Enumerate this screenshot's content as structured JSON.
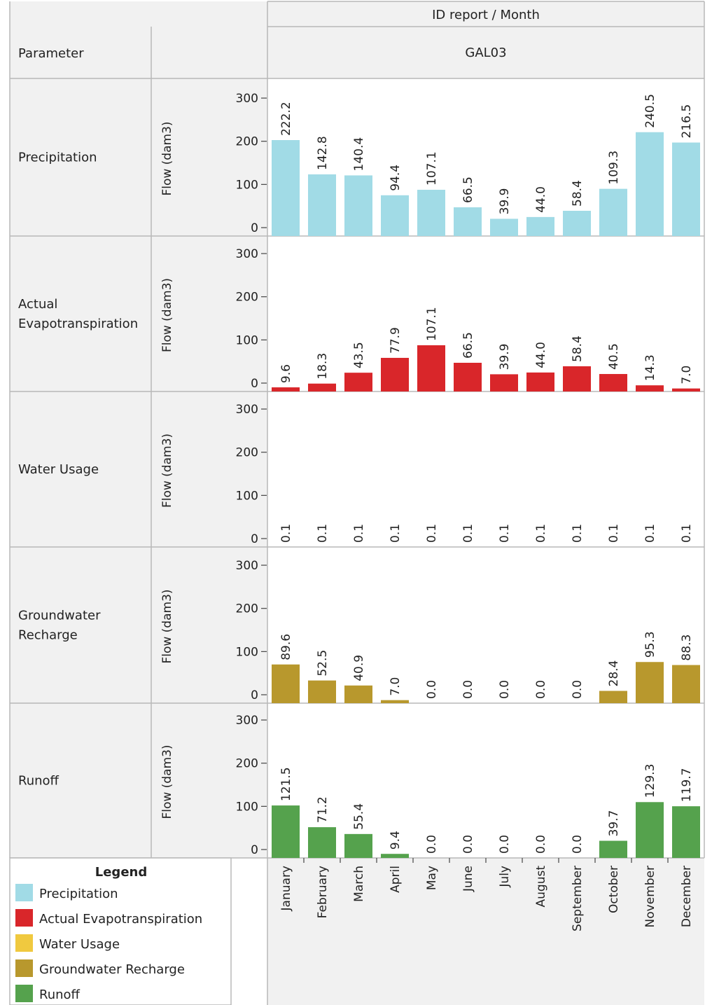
{
  "header": {
    "column_title": "ID report  /  Month",
    "station": "GAL03",
    "parameter_label": "Parameter"
  },
  "legend": {
    "title": "Legend",
    "items": [
      {
        "label": "Precipitation",
        "color": "#a1dbe6"
      },
      {
        "label": "Actual Evapotranspiration",
        "color": "#d9262a"
      },
      {
        "label": "Water Usage",
        "color": "#f0c93f"
      },
      {
        "label": "Groundwater Recharge",
        "color": "#b8982d"
      },
      {
        "label": "Runoff",
        "color": "#55a24d"
      }
    ]
  },
  "chart_data": {
    "type": "bar",
    "categories": [
      "January",
      "February",
      "March",
      "April",
      "May",
      "June",
      "July",
      "August",
      "September",
      "October",
      "November",
      "December"
    ],
    "ylabel": "Flow (dam3)",
    "ylim": [
      0,
      350
    ],
    "yticks": [
      0,
      100,
      200,
      300
    ],
    "series": [
      {
        "name": "Precipitation",
        "color": "#a1dbe6",
        "values": [
          222.2,
          142.8,
          140.4,
          94.4,
          107.1,
          66.5,
          39.9,
          44.0,
          58.4,
          109.3,
          240.5,
          216.5
        ],
        "labels": [
          "222.2",
          "142.8",
          "140.4",
          "94.4",
          "107.1",
          "66.5",
          "39.9",
          "44.0",
          "58.4",
          "109.3",
          "240.5",
          "216.5"
        ]
      },
      {
        "name": "Actual Evapotranspiration",
        "color": "#d9262a",
        "values": [
          9.6,
          18.3,
          43.5,
          77.9,
          107.1,
          66.5,
          39.9,
          44.0,
          58.4,
          40.5,
          14.3,
          7.0
        ],
        "labels": [
          "9.6",
          "18.3",
          "43.5",
          "77.9",
          "107.1",
          "66.5",
          "39.9",
          "44.0",
          "58.4",
          "40.5",
          "14.3",
          "7.0"
        ]
      },
      {
        "name": "Water Usage",
        "color": "#f0c93f",
        "values": [
          0.1,
          0.1,
          0.1,
          0.1,
          0.1,
          0.1,
          0.1,
          0.1,
          0.1,
          0.1,
          0.1,
          0.1
        ],
        "labels": [
          "0.1",
          "0.1",
          "0.1",
          "0.1",
          "0.1",
          "0.1",
          "0.1",
          "0.1",
          "0.1",
          "0.1",
          "0.1",
          "0.1"
        ]
      },
      {
        "name": "Groundwater Recharge",
        "color": "#b8982d",
        "values": [
          89.6,
          52.5,
          40.9,
          7.0,
          0.0,
          0.0,
          0.0,
          0.0,
          0.0,
          28.4,
          95.3,
          88.3
        ],
        "labels": [
          "89.6",
          "52.5",
          "40.9",
          "7.0",
          "0.0",
          "0.0",
          "0.0",
          "0.0",
          "0.0",
          "28.4",
          "95.3",
          "88.3"
        ]
      },
      {
        "name": "Runoff",
        "color": "#55a24d",
        "values": [
          121.5,
          71.2,
          55.4,
          9.4,
          0.0,
          0.0,
          0.0,
          0.0,
          0.0,
          39.7,
          129.3,
          119.7
        ],
        "labels": [
          "121.5",
          "71.2",
          "55.4",
          "9.4",
          "0.0",
          "0.0",
          "0.0",
          "0.0",
          "0.0",
          "39.7",
          "129.3",
          "119.7"
        ]
      }
    ],
    "rows": [
      {
        "name": "Precipitation",
        "lines": [
          "Precipitation"
        ]
      },
      {
        "name": "Actual Evapotranspiration",
        "lines": [
          "Actual",
          "Evapotranspiration"
        ]
      },
      {
        "name": "Water Usage",
        "lines": [
          "Water Usage"
        ]
      },
      {
        "name": "Groundwater Recharge",
        "lines": [
          "Groundwater",
          "Recharge"
        ]
      },
      {
        "name": "Runoff",
        "lines": [
          "Runoff"
        ]
      }
    ]
  }
}
